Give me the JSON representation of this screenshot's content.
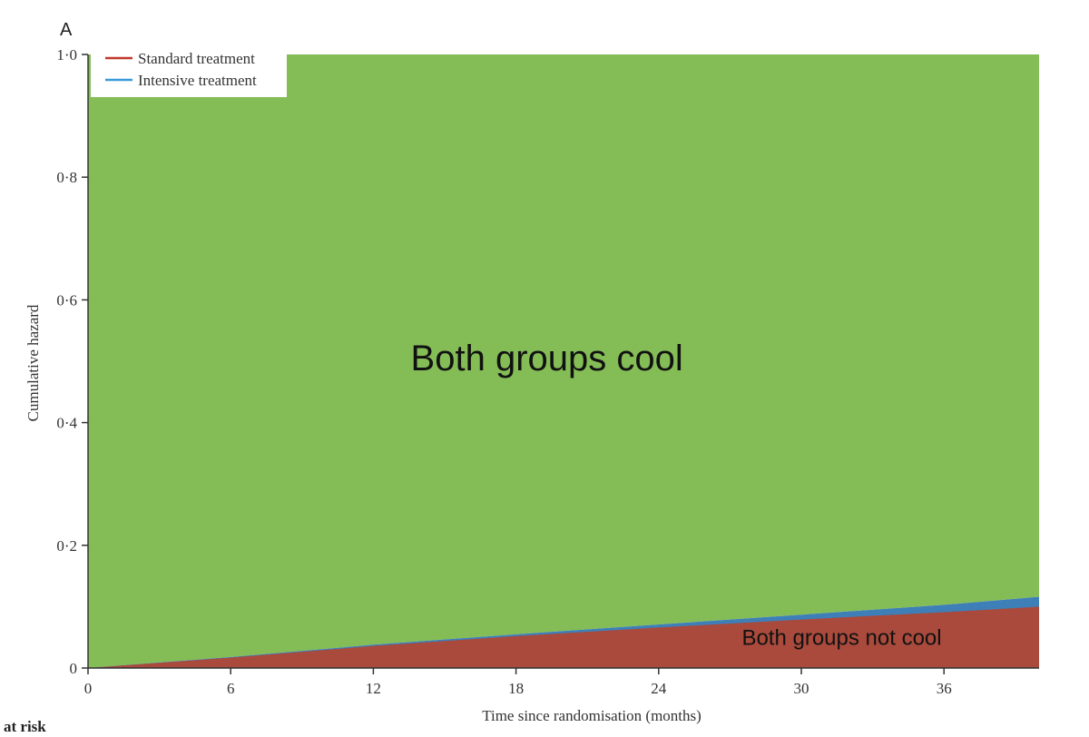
{
  "panel_label": "A",
  "at_risk_label": "at risk",
  "colors": {
    "background_region": "#84bd56",
    "standard": "#a94a3c",
    "intensive": "#3e7fb8",
    "standard_legend": "#c0392b",
    "intensive_legend": "#3a9ad9",
    "axis": "#333333"
  },
  "chart_data": {
    "type": "area",
    "xlabel": "Time since randomisation (months)",
    "ylabel": "Cumulative hazard",
    "xlim": [
      0,
      40
    ],
    "ylim": [
      0,
      1.0
    ],
    "xticks": [
      0,
      6,
      12,
      18,
      24,
      30,
      36
    ],
    "yticks": [
      0,
      0.2,
      0.4,
      0.6,
      0.8,
      1.0
    ],
    "ytick_labels": [
      "0",
      "0·2",
      "0·4",
      "0·6",
      "0·8",
      "1·0"
    ],
    "x": [
      0,
      6,
      12,
      18,
      24,
      30,
      36,
      40
    ],
    "series": [
      {
        "name": "Standard treatment",
        "values": [
          0,
          0.017,
          0.036,
          0.052,
          0.066,
          0.079,
          0.091,
          0.1
        ]
      },
      {
        "name": "Intensive treatment",
        "values": [
          0,
          0.018,
          0.038,
          0.055,
          0.071,
          0.087,
          0.103,
          0.116
        ]
      }
    ],
    "legend_position": "top-left",
    "annotations": [
      {
        "text": "Both groups cool",
        "x": 19.3,
        "y": 0.485
      },
      {
        "text": "Both groups not cool",
        "x": 31.7,
        "y": 0.038
      }
    ]
  }
}
